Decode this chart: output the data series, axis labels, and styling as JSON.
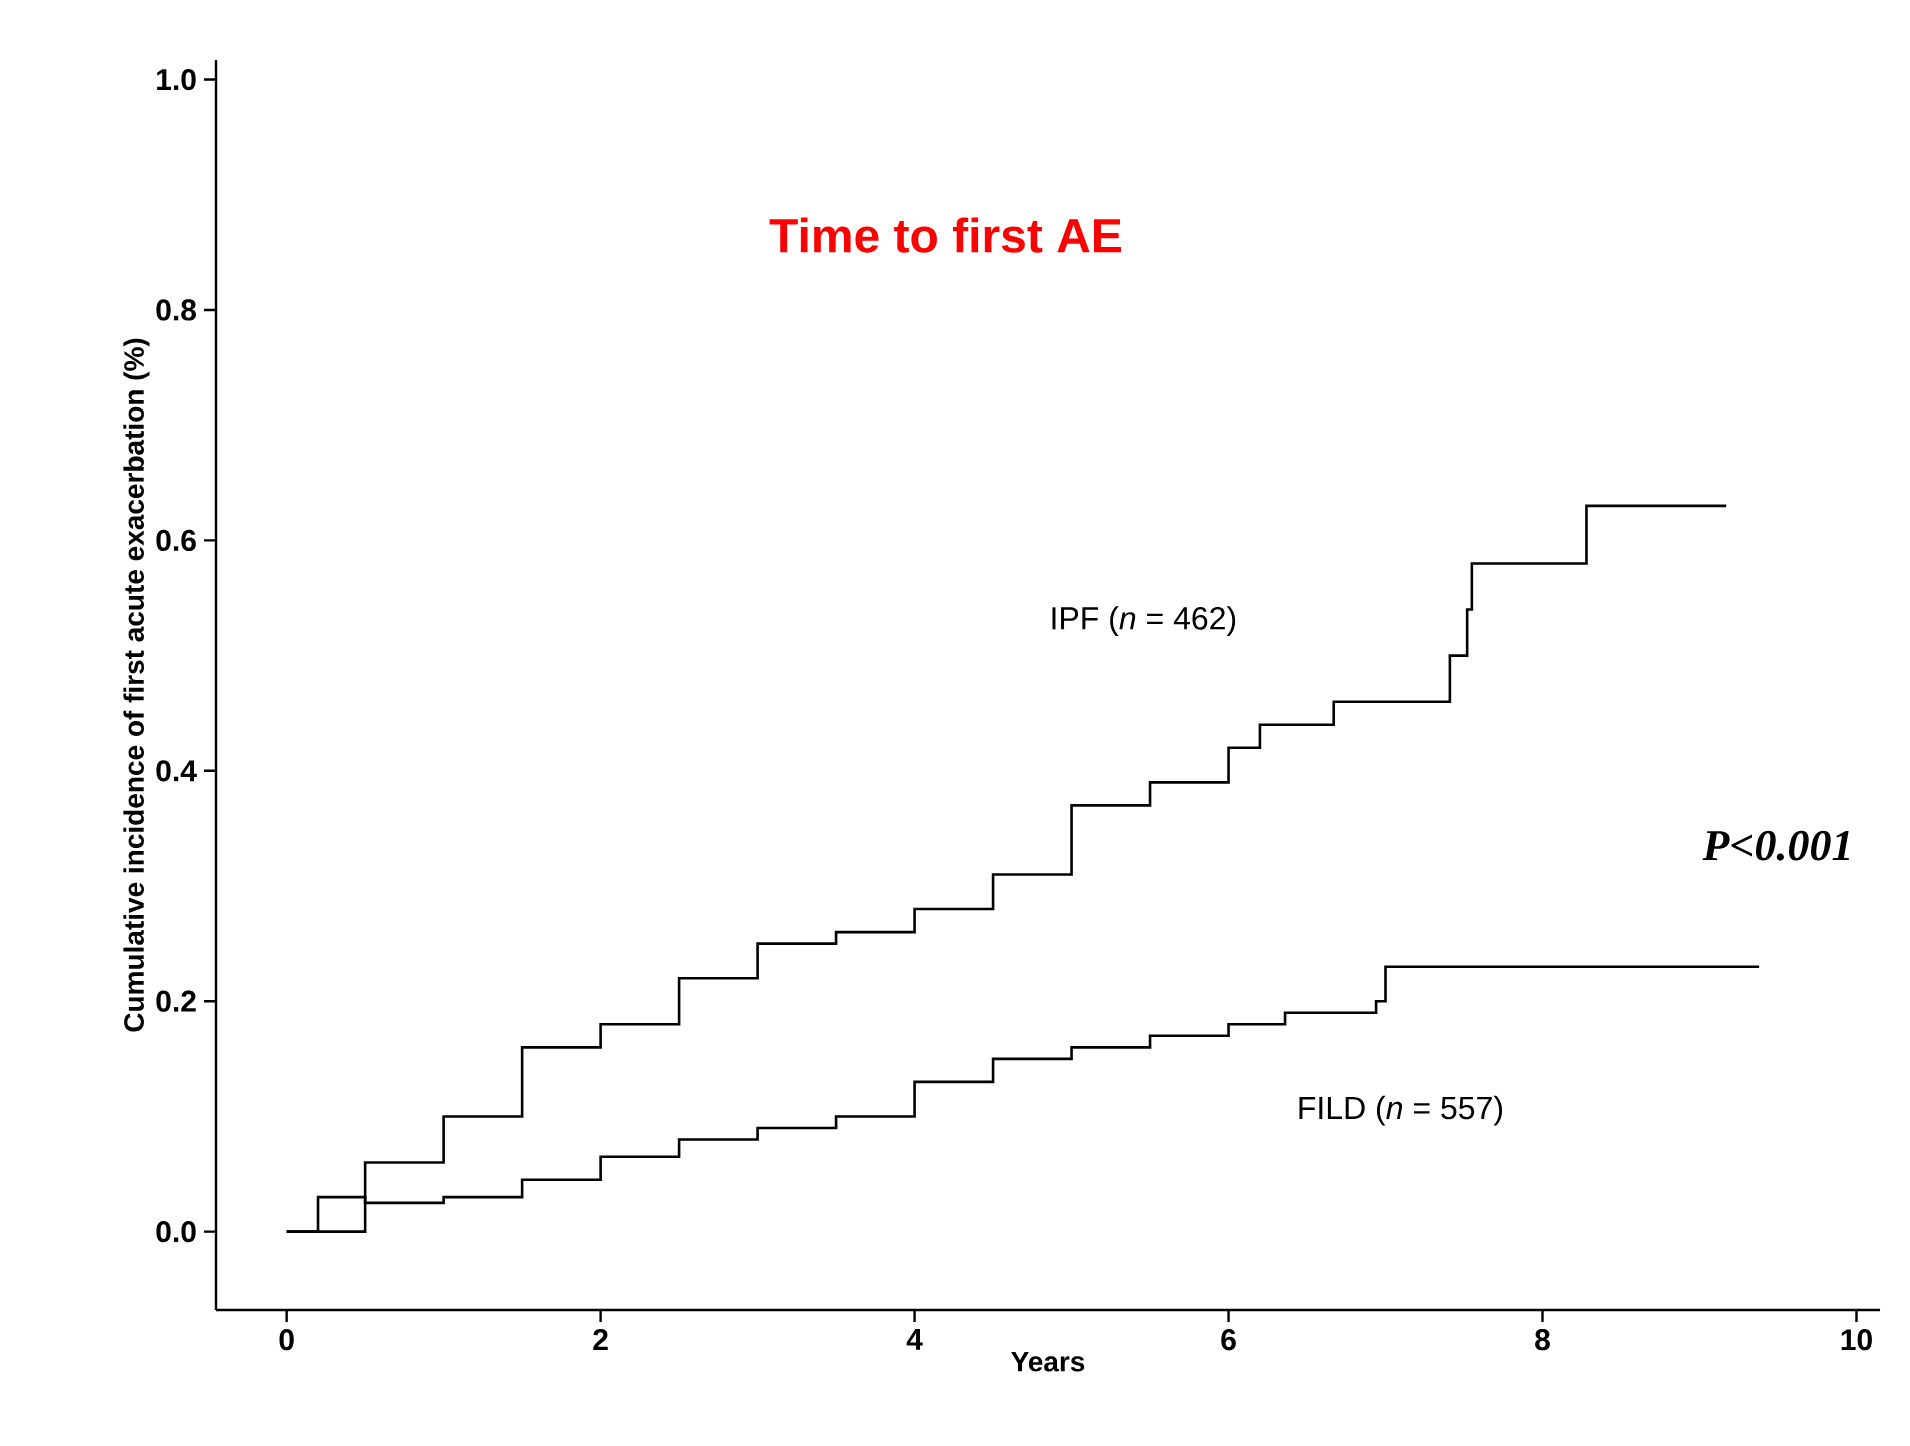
{
  "chart_data": {
    "type": "step",
    "title": "Time to first AE",
    "xlabel": "Years",
    "ylabel": "Cumulative incidence of first acute exacerbation (%)",
    "xlim": [
      -0.45,
      10.15
    ],
    "ylim": [
      -0.068,
      1.017
    ],
    "xticks": [
      0,
      2,
      4,
      6,
      8,
      10
    ],
    "yticks": [
      {
        "value": 0,
        "label": "0.0"
      },
      {
        "value": 0.2,
        "label": "0.2"
      },
      {
        "value": 0.4,
        "label": "0.4"
      },
      {
        "value": 0.6,
        "label": "0.6"
      },
      {
        "value": 0.8,
        "label": "0.8"
      },
      {
        "value": 1,
        "label": "1.0"
      }
    ],
    "grid": false,
    "legend": false,
    "annotations": [
      "P<0.001"
    ],
    "series": [
      {
        "name": "IPF (*n* = 462)",
        "color": "#000000",
        "x": [
          0,
          0.5,
          1,
          1.5,
          2,
          2.5,
          3,
          3.5,
          4,
          4.5,
          5,
          5.5,
          6,
          6.2,
          6.67,
          7.41,
          7.52,
          7.55,
          8.28,
          9.17
        ],
        "values": [
          0,
          0.06,
          0.1,
          0.16,
          0.18,
          0.22,
          0.25,
          0.26,
          0.28,
          0.31,
          0.37,
          0.39,
          0.42,
          0.44,
          0.46,
          0.5,
          0.54,
          0.58,
          0.63,
          0.63
        ]
      },
      {
        "name": "FILD (*n* = 557)",
        "color": "#000000",
        "x": [
          0,
          0.2,
          0.5,
          1,
          1.5,
          2,
          2.5,
          3,
          3.5,
          4,
          4.5,
          5,
          5.5,
          6,
          6.36,
          6.94,
          7.0,
          9.38
        ],
        "values": [
          0,
          0.03,
          0.025,
          0.03,
          0.045,
          0.065,
          0.08,
          0.09,
          0.1,
          0.13,
          0.15,
          0.16,
          0.17,
          0.18,
          0.19,
          0.2,
          0.23,
          0.23
        ]
      }
    ]
  }
}
